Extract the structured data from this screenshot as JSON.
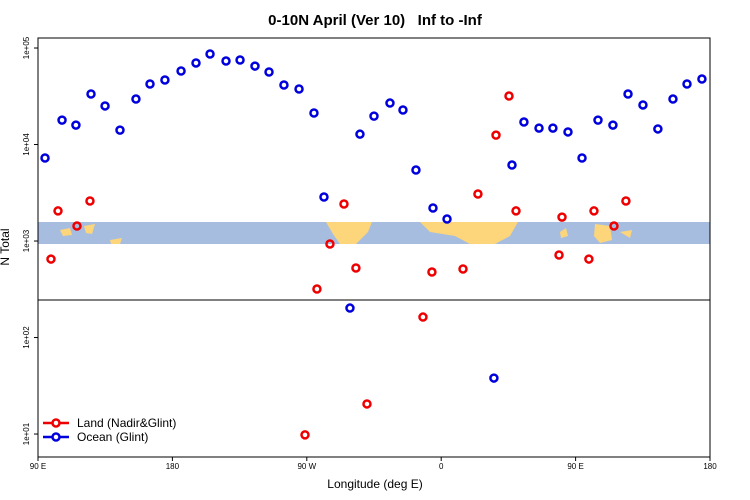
{
  "chart_data": {
    "type": "scatter",
    "title": "0-10N April (Ver 10)   Inf to -Inf",
    "xlabel": "Longitude (deg E)",
    "ylabel": "N Total",
    "xlim": [
      90,
      540
    ],
    "xticks": [
      {
        "value": 90,
        "label": "90 E"
      },
      180,
      {
        "value": 270,
        "label": "90 W"
      },
      {
        "value": 360,
        "label": "0"
      },
      {
        "value": 450,
        "label": "90 E"
      },
      {
        "value": 540,
        "label": "180"
      }
    ],
    "ylim": [
      5.78,
      127000
    ],
    "log_y": true,
    "yticks": [
      {
        "value": 10,
        "label": "1e+01"
      },
      {
        "value": 100,
        "label": "1e+02"
      },
      {
        "value": 1000,
        "label": "1e+03"
      },
      {
        "value": 10000,
        "label": "1e+04"
      },
      {
        "value": 100000,
        "label": "1e+05"
      }
    ],
    "reference_line": 245,
    "legend": "lower left",
    "series": [
      {
        "name": "Land (Nadir&Glint)",
        "color": "#ee0000",
        "x": [
          98.7,
          103.4,
          116.1,
          124.8,
          268.8,
          276.8,
          285.5,
          294.9,
          302.9,
          310.3,
          347.8,
          353.8,
          374.6,
          384.6,
          396.7,
          405.4,
          410.1,
          438.9,
          440.9,
          458.9,
          462.3,
          475.7,
          483.7
        ],
        "values": [
          650,
          2050,
          1430,
          2600,
          9.8,
          318,
          931,
          2420,
          525,
          20.5,
          163,
          477,
          513,
          3070,
          12500,
          31800,
          2050,
          716,
          1770,
          650,
          2050,
          1430,
          2600
        ]
      },
      {
        "name": "Ocean (Glint)",
        "color": "#0000dd",
        "x": [
          94.7,
          106.1,
          115.4,
          125.5,
          134.9,
          144.9,
          155.6,
          165.0,
          175.0,
          185.8,
          195.8,
          205.2,
          215.9,
          225.3,
          235.3,
          244.7,
          254.7,
          264.8,
          274.8,
          281.5,
          298.9,
          305.6,
          315.0,
          325.7,
          334.4,
          343.1,
          354.5,
          363.9,
          395.3,
          407.4,
          415.4,
          425.5,
          434.8,
          444.9,
          454.3,
          465.0,
          475.0,
          485.1,
          495.1,
          505.1,
          515.2,
          524.6,
          534.6
        ],
        "values": [
          7250,
          17900,
          15900,
          33400,
          25100,
          14100,
          29600,
          42400,
          46600,
          57800,
          70000,
          86700,
          73300,
          75100,
          65000,
          56400,
          41400,
          37600,
          21200,
          2860,
          202,
          12800,
          19700,
          26900,
          22800,
          5440,
          2200,
          1690,
          38,
          6130,
          17100,
          14800,
          14800,
          13500,
          7250,
          17900,
          15900,
          33400,
          25700,
          14500,
          29600,
          42400,
          47700
        ]
      }
    ]
  }
}
